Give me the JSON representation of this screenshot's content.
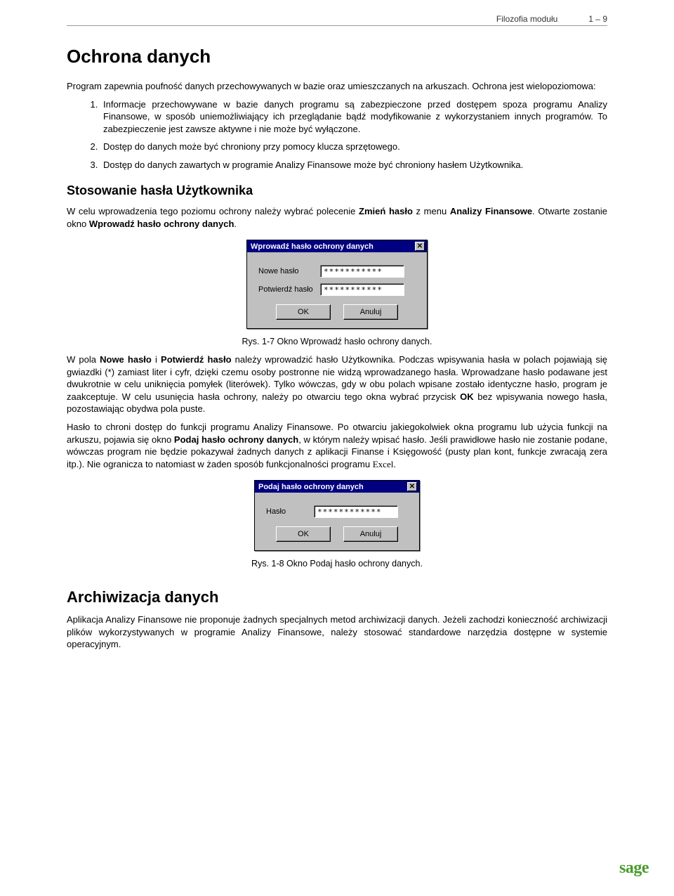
{
  "header": {
    "section": "Filozofia modułu",
    "page": "1 – 9"
  },
  "h1": "Ochrona danych",
  "intro": "Program zapewnia poufność danych przechowywanych w bazie oraz umieszczanych na arkuszach. Ochrona jest wielopoziomowa:",
  "list": {
    "i1": "Informacje przechowywane w bazie danych programu są zabezpieczone przed dostępem spoza programu Analizy Finansowe, w sposób uniemożliwiający ich przeglądanie bądź modyfikowanie z wykorzystaniem innych programów. To zabezpieczenie jest zawsze aktywne i nie może być wyłączone.",
    "i2": "Dostęp do danych może być chroniony przy pomocy klucza sprzętowego.",
    "i3": "Dostęp do danych zawartych w programie Analizy Finansowe może być chroniony hasłem Użytkownika."
  },
  "h2a": "Stosowanie hasła Użytkownika",
  "p1a": "W celu wprowadzenia tego poziomu ochrony należy wybrać polecenie ",
  "p1b": "Zmień hasło",
  "p1c": " z menu ",
  "p1d": "Analizy Finansowe",
  "p1e": ". Otwarte zostanie okno ",
  "p1f": "Wprowadź hasło ochrony danych",
  "p1g": ".",
  "dialog1": {
    "type": "dialog",
    "title": "Wprowadź hasło ochrony danych",
    "close_glyph": "✕",
    "rows": [
      {
        "label": "Nowe hasło",
        "value": "***********"
      },
      {
        "label": "Potwierdź hasło",
        "value": "***********"
      }
    ],
    "ok": "OK",
    "cancel": "Anuluj",
    "background_color": "#c0c0c0",
    "titlebar_color": "#000080"
  },
  "caption1": "Rys. 1-7 Okno Wprowadź hasło ochrony danych.",
  "p2a": "W pola ",
  "p2b": "Nowe hasło",
  "p2c": " i ",
  "p2d": "Potwierdź hasło",
  "p2e": " należy wprowadzić hasło Użytkownika. Podczas wpisywania hasła w polach pojawiają się gwiazdki (*) zamiast liter i cyfr, dzięki czemu osoby postronne nie widzą wprowadzanego hasła. Wprowadzane hasło podawane jest dwukrotnie w celu uniknięcia pomyłek (literówek). Tylko wówczas, gdy w obu polach wpisane zostało identyczne hasło, program je zaakceptuje. W celu usunięcia hasła ochrony, należy po otwarciu tego okna wybrać przycisk ",
  "p2f": "OK",
  "p2g": " bez wpisywania nowego hasła, pozostawiając obydwa pola puste.",
  "p3a": "Hasło to chroni dostęp do funkcji programu Analizy Finansowe. Po otwarciu jakiegokolwiek okna programu lub użycia funkcji na arkuszu, pojawia się okno ",
  "p3b": "Podaj hasło ochrony danych",
  "p3c": ", w którym należy wpisać hasło. Jeśli prawidłowe hasło nie zostanie podane, wówczas program nie będzie pokazywał żadnych danych z aplikacji Finanse i Księgowość (pusty plan kont, funkcje zwracają zera itp.). Nie ogranicza to natomiast w żaden sposób funkcjonalności programu ",
  "p3d": "Excel",
  "p3e": ".",
  "dialog2": {
    "type": "dialog",
    "title": "Podaj hasło ochrony danych",
    "close_glyph": "✕",
    "row_label": "Hasło",
    "row_value": "************",
    "ok": "OK",
    "cancel": "Anuluj",
    "background_color": "#c0c0c0",
    "titlebar_color": "#000080"
  },
  "caption2": "Rys. 1-8 Okno Podaj hasło ochrony danych.",
  "h2b": "Archiwizacja danych",
  "p4": "Aplikacja Analizy Finansowe nie proponuje żadnych specjalnych metod archiwizacji danych. Jeżeli zachodzi konieczność archiwizacji plików wykorzystywanych w programie Analizy Finansowe, należy stosować standardowe narzędzia dostępne w systemie operacyjnym.",
  "logo": "sage",
  "colors": {
    "logo": "#4a9b2e",
    "text": "#000000",
    "rule": "#999999"
  }
}
